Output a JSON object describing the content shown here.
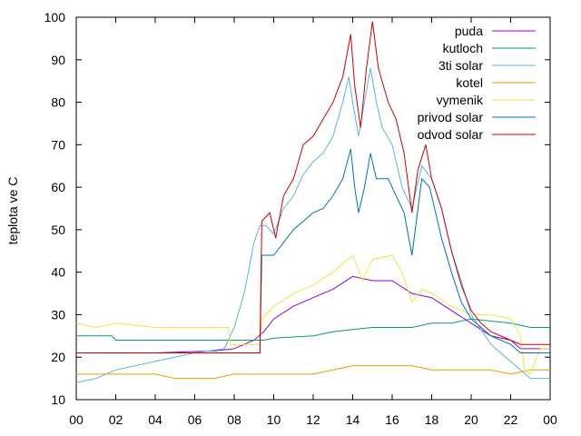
{
  "chart_data": {
    "type": "line",
    "ylabel": "teplota ve C",
    "ylim": [
      10,
      100
    ],
    "yticks": [
      "10",
      "20",
      "30",
      "40",
      "50",
      "60",
      "70",
      "80",
      "90",
      "100"
    ],
    "xlim": [
      0,
      24
    ],
    "xticks": [
      "00",
      "02",
      "04",
      "06",
      "08",
      "10",
      "12",
      "14",
      "16",
      "18",
      "20",
      "22",
      "00"
    ],
    "grid": false,
    "legend": "top-right",
    "series": [
      {
        "name": "puda",
        "color": "#9400d3",
        "points": [
          [
            0,
            21
          ],
          [
            4,
            21
          ],
          [
            7,
            21.5
          ],
          [
            8,
            22
          ],
          [
            9,
            24
          ],
          [
            9.5,
            26
          ],
          [
            10,
            29
          ],
          [
            11,
            32
          ],
          [
            12,
            34
          ],
          [
            13,
            36
          ],
          [
            14,
            39
          ],
          [
            15,
            38
          ],
          [
            16,
            38
          ],
          [
            17,
            35
          ],
          [
            18,
            34
          ],
          [
            19,
            31
          ],
          [
            20,
            28
          ],
          [
            21,
            25
          ],
          [
            22,
            24
          ],
          [
            22.5,
            22
          ],
          [
            23,
            22
          ],
          [
            24,
            22
          ]
        ]
      },
      {
        "name": "kutloch",
        "color": "#009e73",
        "points": [
          [
            0,
            25
          ],
          [
            1.8,
            25
          ],
          [
            2,
            24
          ],
          [
            9.5,
            24
          ],
          [
            10,
            24.5
          ],
          [
            12,
            25
          ],
          [
            13,
            26
          ],
          [
            14,
            26.5
          ],
          [
            15,
            27
          ],
          [
            17,
            27
          ],
          [
            18,
            28
          ],
          [
            19,
            28
          ],
          [
            20,
            29
          ],
          [
            21,
            28.5
          ],
          [
            22,
            28
          ],
          [
            23,
            27
          ],
          [
            24,
            27
          ]
        ]
      },
      {
        "name": "3ti solar",
        "color": "#56b4e9",
        "points": [
          [
            0,
            14
          ],
          [
            1,
            15
          ],
          [
            2,
            17
          ],
          [
            4,
            19
          ],
          [
            6,
            21
          ],
          [
            7.5,
            22
          ],
          [
            8,
            27
          ],
          [
            8.5,
            35
          ],
          [
            9,
            47
          ],
          [
            9.3,
            51
          ],
          [
            9.6,
            51
          ],
          [
            10,
            49
          ],
          [
            10.5,
            55
          ],
          [
            11,
            58
          ],
          [
            11.5,
            63
          ],
          [
            12,
            66
          ],
          [
            12.5,
            68
          ],
          [
            13,
            72
          ],
          [
            13.5,
            80
          ],
          [
            13.8,
            86
          ],
          [
            14,
            80
          ],
          [
            14.3,
            72
          ],
          [
            14.6,
            80
          ],
          [
            14.9,
            88
          ],
          [
            15.2,
            80
          ],
          [
            15.5,
            74
          ],
          [
            16,
            70
          ],
          [
            16.5,
            60
          ],
          [
            17,
            55
          ],
          [
            17.5,
            65
          ],
          [
            18,
            62
          ],
          [
            18.5,
            55
          ],
          [
            19,
            45
          ],
          [
            19.5,
            38
          ],
          [
            20,
            30
          ],
          [
            21,
            23
          ],
          [
            22,
            19
          ],
          [
            23,
            15
          ],
          [
            24,
            15
          ]
        ]
      },
      {
        "name": "kotel",
        "color": "#e69f00",
        "points": [
          [
            0,
            16
          ],
          [
            4,
            16
          ],
          [
            5,
            15
          ],
          [
            7,
            15
          ],
          [
            8,
            16
          ],
          [
            10,
            16
          ],
          [
            12,
            16
          ],
          [
            13,
            17
          ],
          [
            14,
            18
          ],
          [
            17,
            18
          ],
          [
            18,
            17
          ],
          [
            21,
            17
          ],
          [
            22,
            16
          ],
          [
            23,
            17
          ],
          [
            24,
            17
          ]
        ]
      },
      {
        "name": "vymenik",
        "color": "#f0e442",
        "points": [
          [
            0,
            28
          ],
          [
            1,
            27
          ],
          [
            2,
            28
          ],
          [
            4,
            27
          ],
          [
            7.7,
            27
          ],
          [
            7.8,
            23
          ],
          [
            9.3,
            23
          ],
          [
            9.4,
            29
          ],
          [
            10,
            32
          ],
          [
            11,
            35
          ],
          [
            12,
            37
          ],
          [
            13,
            40
          ],
          [
            13.5,
            42
          ],
          [
            14,
            44
          ],
          [
            14.5,
            38
          ],
          [
            15,
            43
          ],
          [
            16,
            44
          ],
          [
            16.5,
            40
          ],
          [
            17,
            33
          ],
          [
            17.5,
            36
          ],
          [
            18,
            35
          ],
          [
            19,
            32
          ],
          [
            20,
            30
          ],
          [
            21,
            30
          ],
          [
            22,
            29
          ],
          [
            22.5,
            25
          ],
          [
            22.7,
            17
          ],
          [
            23,
            16
          ],
          [
            23.5,
            22
          ],
          [
            24,
            22
          ]
        ]
      },
      {
        "name": "privod solar",
        "color": "#0072b2",
        "points": [
          [
            0,
            21
          ],
          [
            9.3,
            21
          ],
          [
            9.4,
            44
          ],
          [
            10,
            44
          ],
          [
            10.5,
            47
          ],
          [
            11,
            50
          ],
          [
            11.5,
            52
          ],
          [
            12,
            54
          ],
          [
            12.5,
            55
          ],
          [
            13,
            58
          ],
          [
            13.5,
            62
          ],
          [
            13.9,
            69
          ],
          [
            14.1,
            60
          ],
          [
            14.3,
            54
          ],
          [
            14.6,
            60
          ],
          [
            14.9,
            68
          ],
          [
            15.2,
            62
          ],
          [
            15.8,
            62
          ],
          [
            16.2,
            58
          ],
          [
            16.6,
            54
          ],
          [
            17,
            44
          ],
          [
            17.5,
            62
          ],
          [
            17.9,
            60
          ],
          [
            18.5,
            48
          ],
          [
            19,
            40
          ],
          [
            19.5,
            33
          ],
          [
            20,
            29
          ],
          [
            21,
            25
          ],
          [
            22,
            23
          ],
          [
            22.5,
            21
          ],
          [
            23,
            21
          ],
          [
            24,
            21
          ]
        ]
      },
      {
        "name": "odvod solar",
        "color": "#cc0000",
        "points": [
          [
            0,
            21
          ],
          [
            9.3,
            21
          ],
          [
            9.4,
            52
          ],
          [
            9.8,
            54
          ],
          [
            10.1,
            48
          ],
          [
            10.5,
            58
          ],
          [
            11,
            62
          ],
          [
            11.5,
            70
          ],
          [
            12,
            72
          ],
          [
            12.5,
            76
          ],
          [
            13,
            80
          ],
          [
            13.5,
            86
          ],
          [
            13.9,
            96
          ],
          [
            14.1,
            84
          ],
          [
            14.4,
            74
          ],
          [
            14.7,
            88
          ],
          [
            15,
            99
          ],
          [
            15.3,
            88
          ],
          [
            15.8,
            80
          ],
          [
            16.2,
            76
          ],
          [
            16.6,
            68
          ],
          [
            17,
            54
          ],
          [
            17.3,
            64
          ],
          [
            17.7,
            70
          ],
          [
            18,
            62
          ],
          [
            18.5,
            55
          ],
          [
            19,
            45
          ],
          [
            19.5,
            37
          ],
          [
            20,
            31
          ],
          [
            20.5,
            28
          ],
          [
            21,
            26
          ],
          [
            22,
            24
          ],
          [
            22.5,
            23
          ],
          [
            23,
            23
          ],
          [
            24,
            23
          ]
        ]
      }
    ]
  }
}
